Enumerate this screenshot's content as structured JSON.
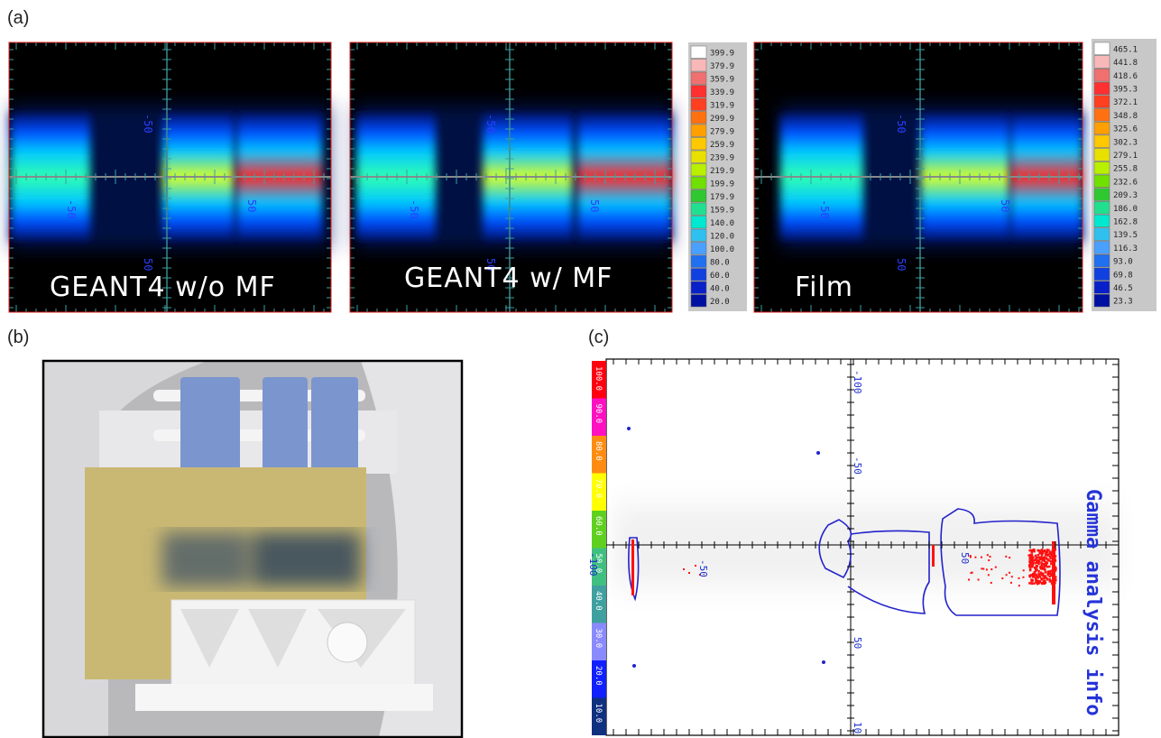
{
  "panels": {
    "a": {
      "label": "(a)",
      "maps": [
        {
          "caption": "GEANT4 w/o MF",
          "axis_labels": [
            "-50",
            "-50",
            "50",
            "50"
          ]
        },
        {
          "caption": "GEANT4 w/ MF",
          "axis_labels": [
            "-50",
            "-50",
            "50",
            "50"
          ]
        },
        {
          "caption": "Film",
          "axis_labels": [
            "-50",
            "-50",
            "50",
            "50"
          ]
        }
      ],
      "colorbars": [
        {
          "labels": [
            "399.9",
            "379.9",
            "359.9",
            "339.9",
            "319.9",
            "299.9",
            "279.9",
            "259.9",
            "239.9",
            "219.9",
            "199.9",
            "179.9",
            "159.9",
            "140.0",
            "120.0",
            "100.0",
            "80.0",
            "60.0",
            "40.0",
            "20.0"
          ]
        },
        {
          "labels": [
            "465.1",
            "441.8",
            "418.6",
            "395.3",
            "372.1",
            "348.8",
            "325.6",
            "302.3",
            "279.1",
            "255.8",
            "232.6",
            "209.3",
            "186.0",
            "162.8",
            "139.5",
            "116.3",
            "93.0",
            "69.8",
            "46.5",
            "23.3"
          ]
        }
      ]
    },
    "b": {
      "label": "(b)"
    },
    "c": {
      "label": "(c)",
      "colorbar": [
        "100.0",
        "90.0",
        "80.0",
        "70.0",
        "60.0",
        "50.0",
        "40.0",
        "30.0",
        "20.0",
        "10.0"
      ],
      "axis_labels": [
        "-100",
        "-50",
        "50",
        "10",
        "-100",
        "-50",
        "50"
      ],
      "info": "Gamma analysis info"
    }
  }
}
